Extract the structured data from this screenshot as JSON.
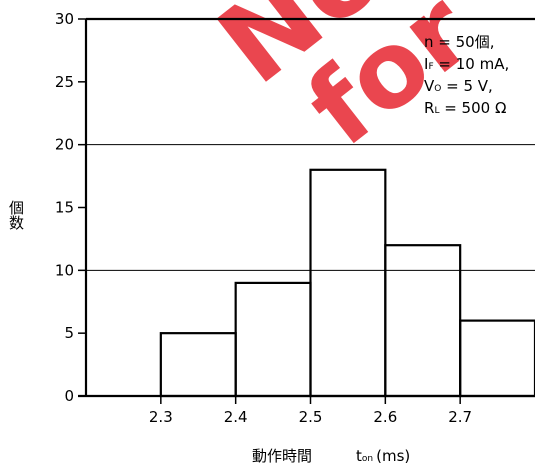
{
  "chart_data": {
    "type": "bar",
    "title": "",
    "xlabel": "動作時間",
    "xlabel_symbol": {
      "main": "t",
      "sub": "on",
      "unit": "(ms)"
    },
    "ylabel": "個数",
    "bin_width": 0.1,
    "x_ticks": [
      "2.3",
      "2.4",
      "2.5",
      "2.6",
      "2.7"
    ],
    "y_ticks": [
      "0",
      "5",
      "10",
      "15",
      "20",
      "25",
      "30"
    ],
    "xlim": [
      2.2,
      2.8
    ],
    "ylim": [
      0,
      30
    ],
    "gridlines_y": [
      10,
      20
    ],
    "bins": [
      {
        "start": 2.3,
        "end": 2.4,
        "value": 5
      },
      {
        "start": 2.4,
        "end": 2.5,
        "value": 9
      },
      {
        "start": 2.5,
        "end": 2.6,
        "value": 18
      },
      {
        "start": 2.6,
        "end": 2.7,
        "value": 12
      },
      {
        "start": 2.7,
        "end": 2.8,
        "value": 6
      }
    ],
    "annotations": [
      {
        "main": "n = 50個,"
      },
      {
        "main": "I",
        "sub": "F",
        "rest": " = 10 mA,"
      },
      {
        "main": "V",
        "sub": "O",
        "rest": " = 5 V,"
      },
      {
        "main": "R",
        "sub": "L",
        "rest": " = 500 Ω"
      }
    ],
    "watermark": {
      "line1": "No",
      "line2": "for"
    },
    "colors": {
      "bar_stroke": "#000000",
      "watermark": "#e8323c"
    }
  }
}
